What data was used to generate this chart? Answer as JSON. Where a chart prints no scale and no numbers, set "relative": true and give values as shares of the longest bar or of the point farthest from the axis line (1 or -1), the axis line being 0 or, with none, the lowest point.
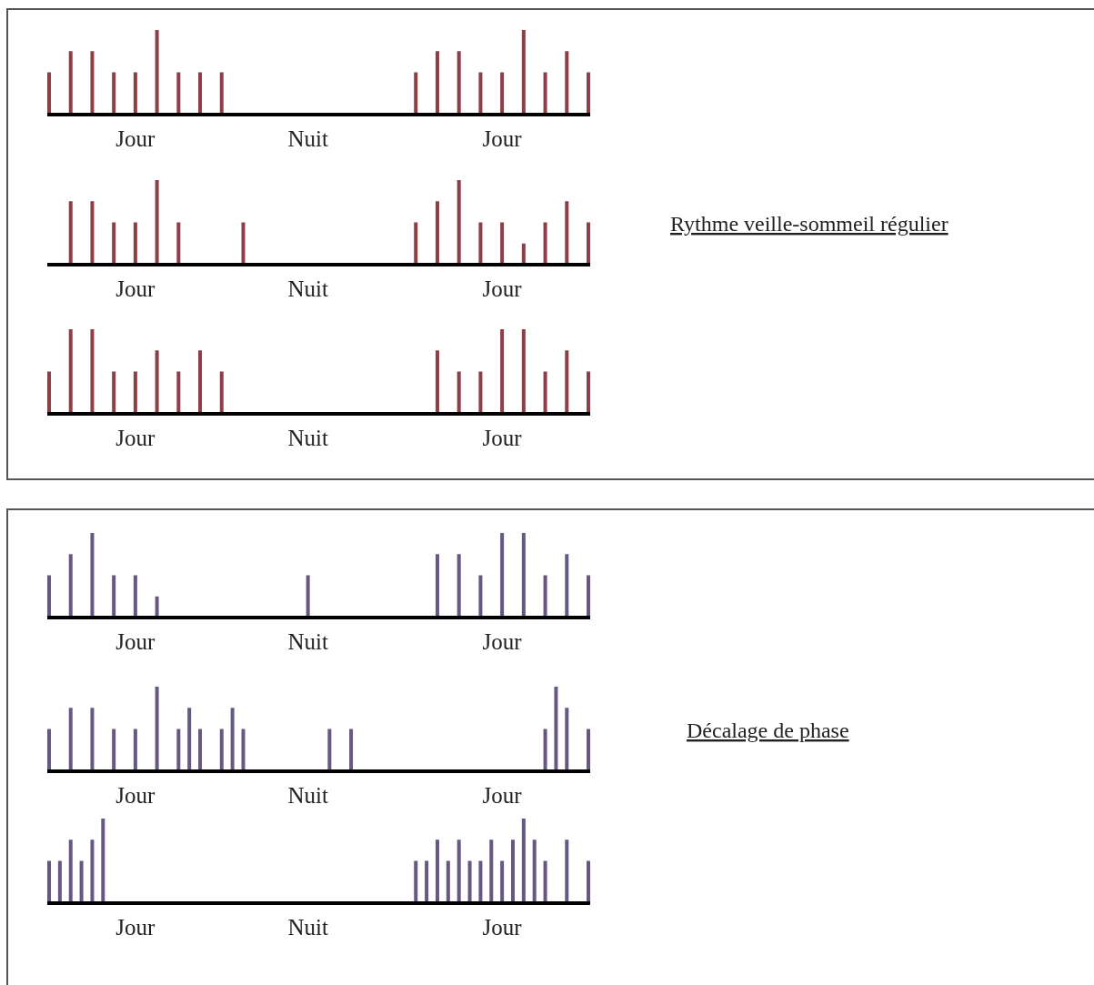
{
  "chart_data": [
    {
      "type": "bar",
      "relative": true,
      "color": "#8c3f47",
      "categories": [
        null,
        null,
        null,
        null,
        null,
        null,
        null,
        null,
        "Jour",
        null,
        null,
        null,
        null,
        null,
        null,
        null,
        null,
        null,
        null,
        null,
        null,
        null,
        null,
        null,
        "Nuit",
        null,
        null,
        null,
        null,
        null,
        null,
        null,
        null,
        null,
        null,
        null,
        null,
        null,
        null,
        null,
        null,
        null,
        "Jour",
        null,
        null,
        null,
        null,
        null,
        null,
        null,
        null
      ],
      "values": [
        0.5,
        null,
        0.75,
        null,
        0.75,
        null,
        0.5,
        null,
        0.5,
        null,
        1,
        null,
        0.5,
        null,
        0.5,
        null,
        0.5,
        null,
        null,
        null,
        null,
        null,
        null,
        null,
        null,
        null,
        null,
        null,
        null,
        null,
        null,
        null,
        null,
        null,
        0.5,
        null,
        0.75,
        null,
        0.75,
        null,
        0.5,
        null,
        0.5,
        null,
        1,
        null,
        0.5,
        null,
        0.75,
        null,
        0.5
      ]
    },
    {
      "type": "bar",
      "relative": true,
      "color": "#8c3f47",
      "annotations": [
        "Rythme veille-sommeil régulier"
      ],
      "categories": [
        null,
        null,
        null,
        null,
        null,
        null,
        null,
        null,
        "Jour",
        null,
        null,
        null,
        null,
        null,
        null,
        null,
        null,
        null,
        null,
        null,
        null,
        null,
        null,
        null,
        "Nuit",
        null,
        null,
        null,
        null,
        null,
        null,
        null,
        null,
        null,
        null,
        null,
        null,
        null,
        null,
        null,
        null,
        null,
        "Jour",
        null,
        null,
        null,
        null,
        null,
        null,
        null,
        null
      ],
      "values": [
        null,
        null,
        0.75,
        null,
        0.75,
        null,
        0.5,
        null,
        0.5,
        null,
        1,
        null,
        0.5,
        null,
        null,
        null,
        null,
        null,
        0.5,
        null,
        null,
        null,
        null,
        null,
        null,
        null,
        null,
        null,
        null,
        null,
        null,
        null,
        null,
        null,
        0.5,
        null,
        0.75,
        null,
        1,
        null,
        0.5,
        null,
        0.5,
        null,
        0.25,
        null,
        0.5,
        null,
        0.75,
        null,
        0.5
      ]
    },
    {
      "type": "bar",
      "relative": true,
      "color": "#8c3f47",
      "categories": [
        null,
        null,
        null,
        null,
        null,
        null,
        null,
        null,
        "Jour",
        null,
        null,
        null,
        null,
        null,
        null,
        null,
        null,
        null,
        null,
        null,
        null,
        null,
        null,
        null,
        "Nuit",
        null,
        null,
        null,
        null,
        null,
        null,
        null,
        null,
        null,
        null,
        null,
        null,
        null,
        null,
        null,
        null,
        null,
        "Jour",
        null,
        null,
        null,
        null,
        null,
        null,
        null,
        null
      ],
      "values": [
        0.5,
        null,
        1,
        null,
        1,
        null,
        0.5,
        null,
        0.5,
        null,
        0.75,
        null,
        0.5,
        null,
        0.75,
        null,
        0.5,
        null,
        null,
        null,
        null,
        null,
        null,
        null,
        null,
        null,
        null,
        null,
        null,
        null,
        null,
        null,
        null,
        null,
        null,
        null,
        0.75,
        null,
        0.5,
        null,
        0.5,
        null,
        1,
        null,
        1,
        null,
        0.5,
        null,
        0.75,
        null,
        0.5
      ]
    },
    {
      "type": "bar",
      "relative": true,
      "color": "#675883",
      "categories": [
        null,
        null,
        null,
        null,
        null,
        null,
        null,
        null,
        "Jour",
        null,
        null,
        null,
        null,
        null,
        null,
        null,
        null,
        null,
        null,
        null,
        null,
        null,
        null,
        null,
        "Nuit",
        null,
        null,
        null,
        null,
        null,
        null,
        null,
        null,
        null,
        null,
        null,
        null,
        null,
        null,
        null,
        null,
        null,
        "Jour",
        null,
        null,
        null,
        null,
        null,
        null,
        null,
        null
      ],
      "values": [
        0.5,
        null,
        0.75,
        null,
        1,
        null,
        0.5,
        null,
        0.5,
        null,
        0.25,
        null,
        null,
        null,
        null,
        null,
        null,
        null,
        null,
        null,
        null,
        null,
        null,
        null,
        0.5,
        null,
        null,
        null,
        null,
        null,
        null,
        null,
        null,
        null,
        null,
        null,
        0.75,
        null,
        0.75,
        null,
        0.5,
        null,
        1,
        null,
        1,
        null,
        0.5,
        null,
        0.75,
        null,
        0.5
      ]
    },
    {
      "type": "bar",
      "relative": true,
      "color": "#675883",
      "annotations": [
        "Décalage de phase"
      ],
      "categories": [
        null,
        null,
        null,
        null,
        null,
        null,
        null,
        null,
        "Jour",
        null,
        null,
        null,
        null,
        null,
        null,
        null,
        null,
        null,
        null,
        null,
        null,
        null,
        null,
        null,
        "Nuit",
        null,
        null,
        null,
        null,
        null,
        null,
        null,
        null,
        null,
        null,
        null,
        null,
        null,
        null,
        null,
        null,
        null,
        "Jour",
        null,
        null,
        null,
        null,
        null,
        null,
        null,
        null
      ],
      "values": [
        0.5,
        null,
        0.75,
        null,
        0.75,
        null,
        0.5,
        null,
        0.5,
        null,
        1,
        null,
        0.5,
        0.75,
        0.5,
        null,
        0.5,
        0.75,
        0.5,
        null,
        null,
        null,
        null,
        null,
        null,
        null,
        0.5,
        null,
        0.5,
        null,
        null,
        null,
        null,
        null,
        null,
        null,
        null,
        null,
        null,
        null,
        null,
        null,
        null,
        null,
        null,
        null,
        0.5,
        1,
        0.75,
        null,
        0.5
      ]
    },
    {
      "type": "bar",
      "relative": true,
      "color": "#675883",
      "categories": [
        null,
        null,
        null,
        null,
        null,
        null,
        null,
        null,
        "Jour",
        null,
        null,
        null,
        null,
        null,
        null,
        null,
        null,
        null,
        null,
        null,
        null,
        null,
        null,
        null,
        "Nuit",
        null,
        null,
        null,
        null,
        null,
        null,
        null,
        null,
        null,
        null,
        null,
        null,
        null,
        null,
        null,
        null,
        null,
        "Jour",
        null,
        null,
        null,
        null,
        null,
        null,
        null,
        null
      ],
      "values": [
        0.5,
        0.5,
        0.75,
        0.5,
        0.75,
        1,
        null,
        null,
        null,
        null,
        null,
        null,
        null,
        null,
        null,
        null,
        null,
        null,
        null,
        null,
        null,
        null,
        null,
        null,
        null,
        null,
        null,
        null,
        null,
        null,
        null,
        null,
        null,
        null,
        0.5,
        0.5,
        0.75,
        0.5,
        0.75,
        0.5,
        0.5,
        0.75,
        0.5,
        0.75,
        1,
        0.75,
        0.5,
        null,
        0.75,
        null,
        0.5
      ]
    }
  ]
}
